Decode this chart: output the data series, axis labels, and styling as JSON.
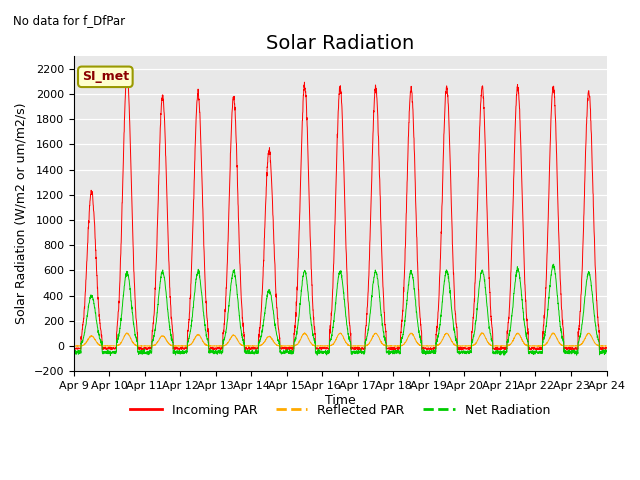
{
  "title": "Solar Radiation",
  "subtitle": "No data for f_DfPar",
  "ylabel": "Solar Radiation (W/m2 or um/m2/s)",
  "xlabel": "Time",
  "ylim": [
    -200,
    2300
  ],
  "yticks": [
    -200,
    0,
    200,
    400,
    600,
    800,
    1000,
    1200,
    1400,
    1600,
    1800,
    2000,
    2200
  ],
  "xlim": [
    0,
    15
  ],
  "xtick_positions": [
    0,
    1,
    2,
    3,
    4,
    5,
    6,
    7,
    8,
    9,
    10,
    11,
    12,
    13,
    14,
    15
  ],
  "xtick_labels": [
    "Apr 9",
    "Apr 10",
    "Apr 11",
    "Apr 12",
    "Apr 13",
    "Apr 14",
    "Apr 15",
    "Apr 16",
    "Apr 17",
    "Apr 18",
    "Apr 19",
    "Apr 20",
    "Apr 21",
    "Apr 22",
    "Apr 23",
    "Apr 24"
  ],
  "legend_label_text": "SI_met",
  "legend_entries": [
    "Incoming PAR",
    "Reflected PAR",
    "Net Radiation"
  ],
  "line_colors": [
    "#ff0000",
    "#ffaa00",
    "#00cc00"
  ],
  "background_color": "#e8e8e8",
  "title_fontsize": 14,
  "axis_label_fontsize": 9,
  "tick_fontsize": 8,
  "n_days": 15,
  "day_peaks_incoming": [
    1230,
    2160,
    1980,
    2000,
    1970,
    1550,
    2070,
    2050,
    2050,
    2030,
    2050,
    2050,
    2060,
    2060,
    2020
  ],
  "day_peaks_net": [
    400,
    580,
    590,
    590,
    590,
    440,
    590,
    590,
    590,
    590,
    590,
    600,
    610,
    640,
    580
  ],
  "day_peaks_reflected": [
    80,
    100,
    80,
    90,
    85,
    75,
    100,
    100,
    100,
    100,
    100,
    100,
    100,
    100,
    100
  ],
  "night_incoming": -20,
  "night_net": -50,
  "night_reflected": 0
}
